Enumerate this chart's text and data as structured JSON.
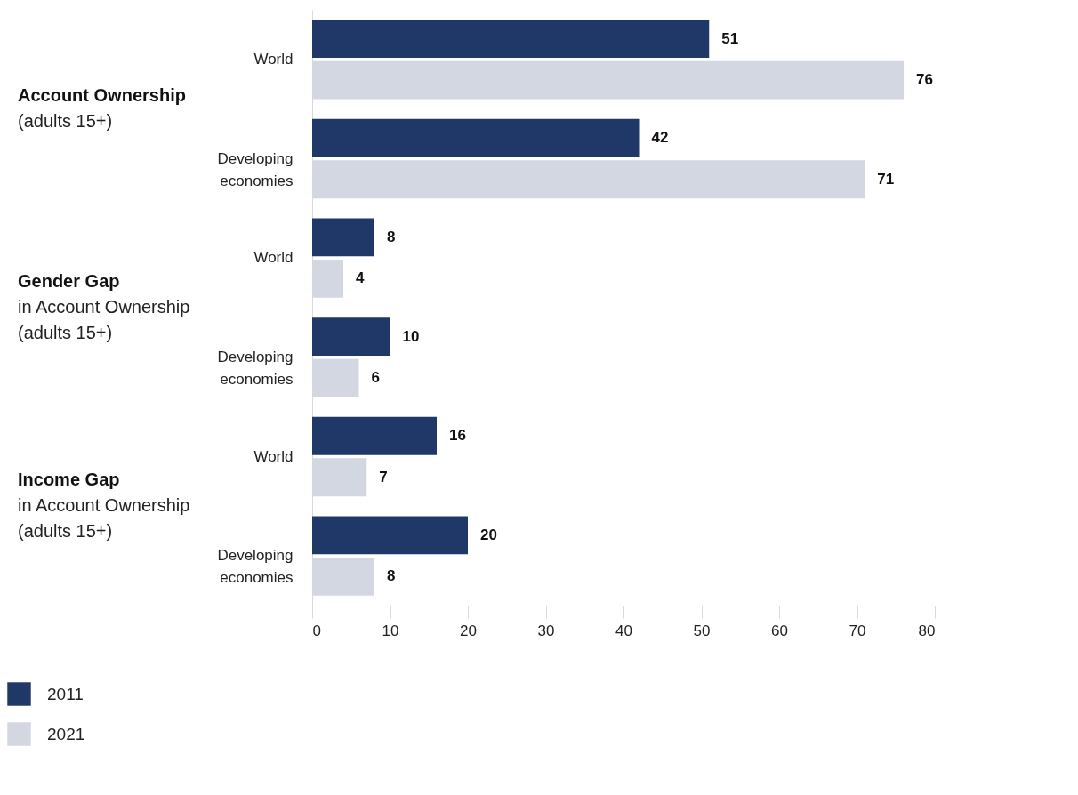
{
  "chart_data": {
    "type": "bar",
    "orientation": "horizontal",
    "categories": [
      "World",
      "Developing economies",
      "World",
      "Developing economies",
      "World",
      "Developing economies"
    ],
    "series": [
      {
        "name": "2011",
        "color": "#1f3868",
        "values": [
          51,
          42,
          8,
          10,
          16,
          20
        ]
      },
      {
        "name": "2021",
        "color": "#d3d7e2",
        "values": [
          76,
          71,
          4,
          6,
          7,
          8
        ]
      }
    ],
    "xlim": [
      0,
      80
    ],
    "xticks": [
      0,
      10,
      20,
      30,
      40,
      50,
      60,
      70,
      80
    ],
    "data_labels": true,
    "grid": false,
    "legend": "bottom",
    "annotations": [
      "Account Ownership\n(adults 15+)",
      "Gender Gap\nin Account Ownership\n(adults 15+)",
      "Income Gap\nin Account Ownership\n(adults 15+)"
    ]
  }
}
